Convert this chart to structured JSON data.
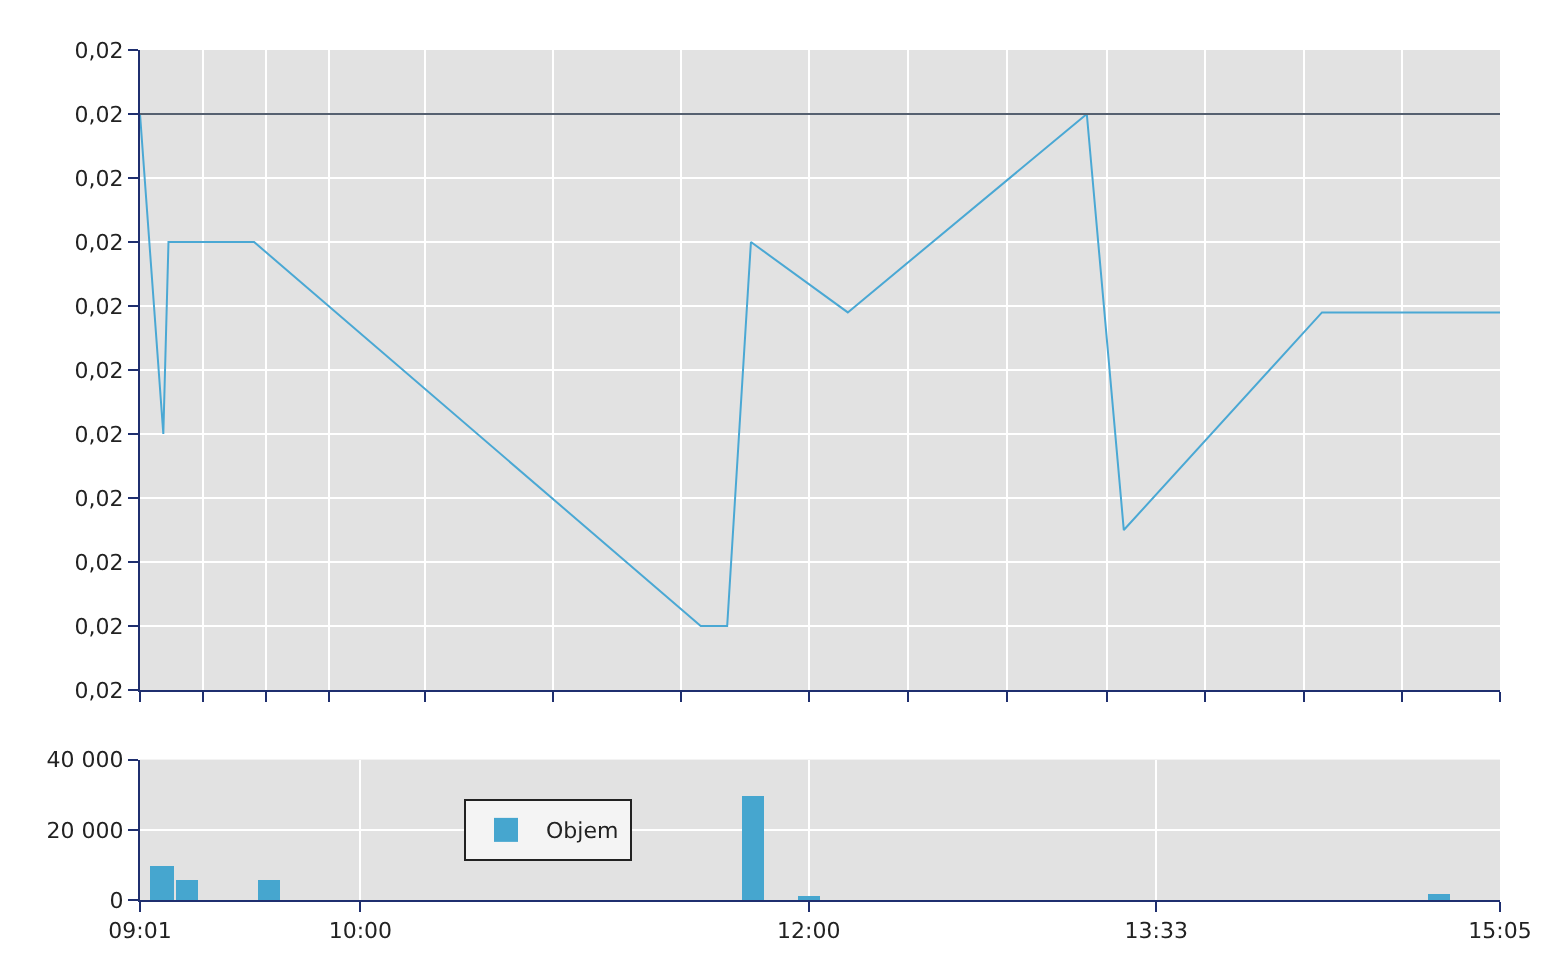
{
  "chart_data": [
    {
      "type": "line",
      "x": [
        9.017,
        9.121,
        9.144,
        9.526,
        11.518,
        11.636,
        11.742,
        12.174,
        13.24,
        13.405,
        14.289,
        15.083
      ],
      "series": [
        {
          "color": "#4aa8d4",
          "values": [
            0.0204,
            0.0199,
            0.0202,
            0.0202,
            0.0196,
            0.0196,
            0.0202,
            0.02009,
            0.0204,
            0.01975,
            0.02009,
            0.02009
          ]
        }
      ],
      "xlim": [
        9.017,
        15.083
      ],
      "xticks": [
        {
          "value": 9.017,
          "label": null
        },
        {
          "value": 9.298,
          "label": null
        },
        {
          "value": 9.579,
          "label": null
        },
        {
          "value": 9.86,
          "label": null
        },
        {
          "value": 10.286,
          "label": null
        },
        {
          "value": 10.857,
          "label": null
        },
        {
          "value": 11.429,
          "label": null
        },
        {
          "value": 12,
          "label": null
        },
        {
          "value": 12.443,
          "label": null
        },
        {
          "value": 12.886,
          "label": null
        },
        {
          "value": 13.329,
          "label": null
        },
        {
          "value": 13.769,
          "label": null
        },
        {
          "value": 14.207,
          "label": null
        },
        {
          "value": 14.645,
          "label": null
        },
        {
          "value": 15.083,
          "label": null
        }
      ],
      "ylim": [
        0.0195,
        0.0205
      ],
      "yticks": [
        {
          "value": 0.0195,
          "label": "0,02"
        },
        {
          "value": 0.0196,
          "label": "0,02"
        },
        {
          "value": 0.0197,
          "label": "0,02"
        },
        {
          "value": 0.0198,
          "label": "0,02"
        },
        {
          "value": 0.0199,
          "label": "0,02"
        },
        {
          "value": 0.02,
          "label": "0,02"
        },
        {
          "value": 0.0201,
          "label": "0,02"
        },
        {
          "value": 0.0202,
          "label": "0,02"
        },
        {
          "value": 0.0203,
          "label": "0,02"
        },
        {
          "value": 0.0204,
          "label": "0,02"
        },
        {
          "value": 0.0205,
          "label": "0,02"
        }
      ],
      "ref_lines": [
        {
          "axis": "y",
          "value": 0.0204,
          "color": "#556070"
        }
      ],
      "grid": true,
      "tick_labels": "y",
      "legend": false
    },
    {
      "type": "bar",
      "x": [
        9.115,
        9.225,
        9.595,
        11.752,
        12.0,
        14.814
      ],
      "series": [
        {
          "name": "Objem",
          "color": "#46a6cf",
          "values": [
            10000,
            5500,
            5500,
            30000,
            1000,
            2000
          ]
        }
      ],
      "xlim": [
        9.017,
        15.083
      ],
      "xticks": [
        {
          "value": 9.017,
          "label": "09:01"
        },
        {
          "value": 10,
          "label": "10:00"
        },
        {
          "value": 12,
          "label": "12:00"
        },
        {
          "value": 13.55,
          "label": "13:33"
        },
        {
          "value": 15.083,
          "label": "15:05"
        }
      ],
      "ylim": [
        0,
        40000
      ],
      "yticks": [
        {
          "value": 0,
          "label": "0"
        },
        {
          "value": 20000,
          "label": "20 000"
        },
        {
          "value": 40000,
          "label": "40 000"
        }
      ],
      "grid": true,
      "legend": "center"
    }
  ]
}
